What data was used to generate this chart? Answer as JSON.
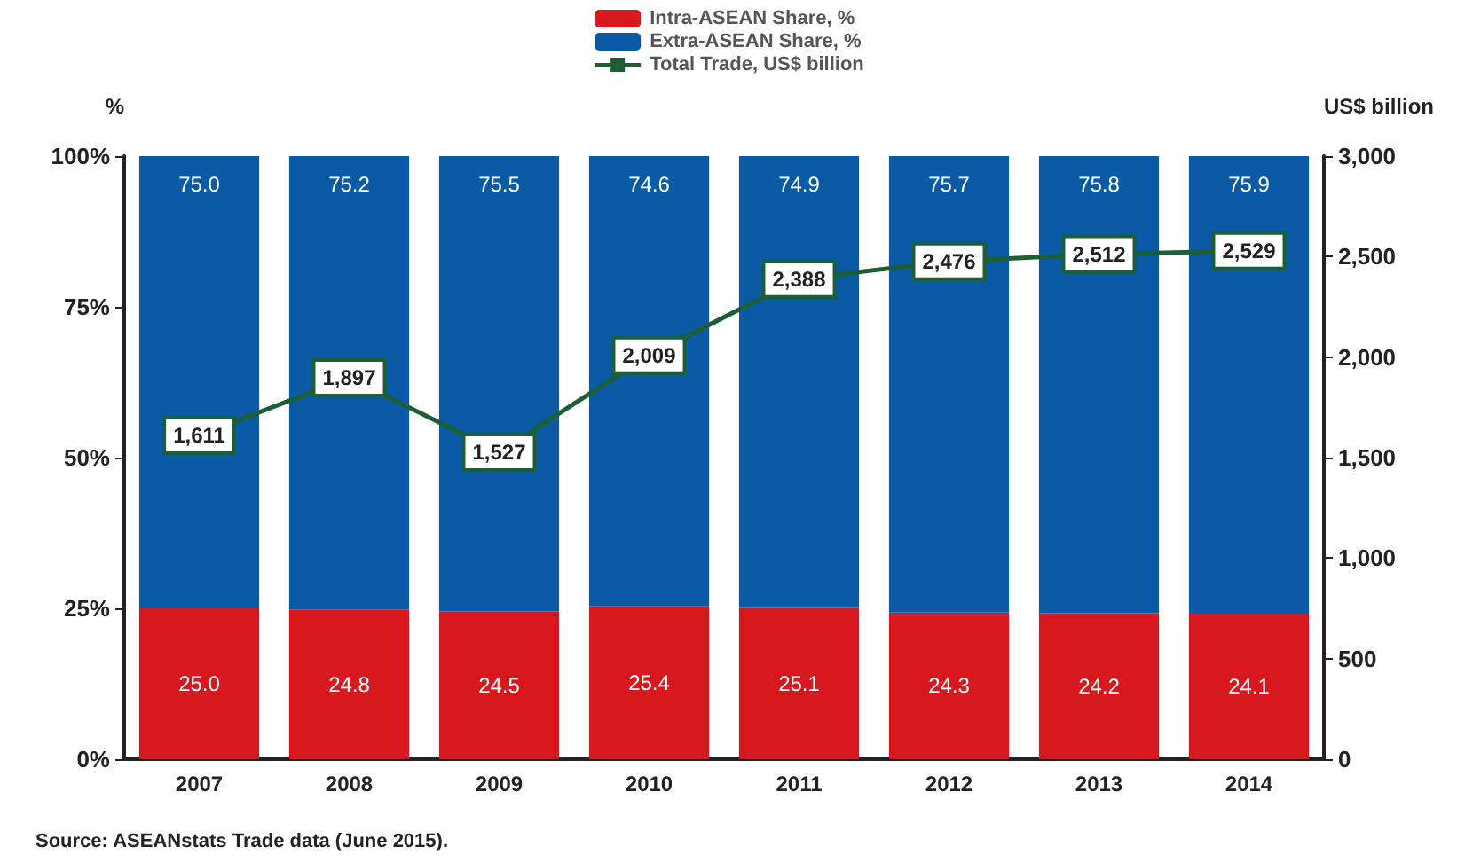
{
  "chart_data": {
    "type": "bar",
    "stacked": true,
    "ylabel": "%",
    "y2label": "US$ billion",
    "categories": [
      "2007",
      "2008",
      "2009",
      "2010",
      "2011",
      "2012",
      "2013",
      "2014"
    ],
    "series": [
      {
        "name": "Intra-ASEAN Share, %",
        "color": "#d7191f",
        "values": [
          25.0,
          24.8,
          24.5,
          25.4,
          25.1,
          24.3,
          24.2,
          24.1
        ],
        "value_labels": [
          "25.0",
          "24.8",
          "24.5",
          "25.4",
          "25.1",
          "24.3",
          "24.2",
          "24.1"
        ]
      },
      {
        "name": "Extra-ASEAN Share, %",
        "color": "#0b5aa6",
        "values": [
          75.0,
          75.2,
          75.5,
          74.6,
          74.9,
          75.7,
          75.8,
          75.9
        ],
        "value_labels": [
          "75.0",
          "75.2",
          "75.5",
          "74.6",
          "74.9",
          "75.7",
          "75.8",
          "75.9"
        ]
      },
      {
        "name": "Total Trade, US$ billion",
        "type": "line",
        "axis": "y2",
        "color": "#1e5e35",
        "marker": "square",
        "values": [
          1611,
          1897,
          1527,
          2009,
          2388,
          2476,
          2512,
          2529
        ],
        "value_labels": [
          "1,611",
          "1,897",
          "1,527",
          "2,009",
          "2,388",
          "2,476",
          "2,512",
          "2,529"
        ]
      }
    ],
    "ylim": [
      0,
      100
    ],
    "yticks": [
      {
        "value": 0,
        "label": "0%"
      },
      {
        "value": 25,
        "label": "25%"
      },
      {
        "value": 50,
        "label": "50%"
      },
      {
        "value": 75,
        "label": "75%"
      },
      {
        "value": 100,
        "label": "100%"
      }
    ],
    "y2lim": [
      0,
      3000
    ],
    "y2ticks": [
      0,
      {
        "value": 500,
        "label": "500"
      },
      {
        "value": 1000,
        "label": "1,000"
      },
      {
        "value": 1500,
        "label": "1,500"
      },
      {
        "value": 2000,
        "label": "2,000"
      },
      {
        "value": 2500,
        "label": "2,500"
      },
      {
        "value": 3000,
        "label": "3,000"
      }
    ],
    "legend": "top",
    "annotations": [
      "Source: ASEANstats Trade data (June 2015)."
    ]
  }
}
